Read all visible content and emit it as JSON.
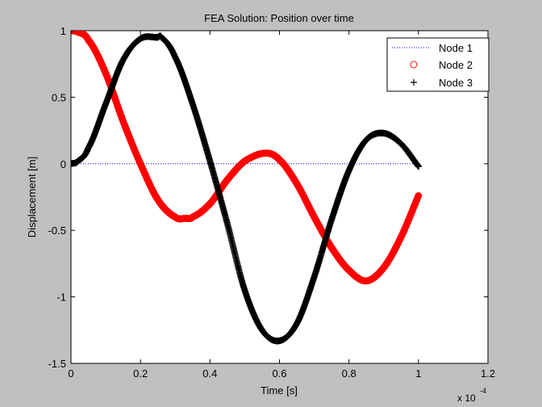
{
  "chart_data": {
    "type": "scatter",
    "title": "FEA Solution: Position over time",
    "xlabel": "Time [s]",
    "ylabel": "Displacement [m]",
    "xlim": [
      0,
      1.2
    ],
    "ylim": [
      -1.5,
      1
    ],
    "x_scale_base": "x 10",
    "x_scale_exponent": "-4",
    "x_ticks": [
      "0",
      "0.2",
      "0.4",
      "0.6",
      "0.8",
      "1",
      "1.2"
    ],
    "y_ticks": [
      "-1.5",
      "-1",
      "-0.5",
      "0",
      "0.5",
      "1"
    ],
    "x_tick_values": [
      0,
      0.2,
      0.4,
      0.6,
      0.8,
      1,
      1.2
    ],
    "y_tick_values": [
      -1.5,
      -1,
      -0.5,
      0,
      0.5,
      1
    ],
    "grid": false,
    "legend_position": "top-right",
    "series": [
      {
        "name": "Node 1",
        "style": "dotted-line",
        "color": "#0000ff",
        "x": [
          0,
          0.1,
          0.2,
          0.3,
          0.4,
          0.5,
          0.6,
          0.7,
          0.8,
          0.9,
          1.0
        ],
        "y": [
          0,
          0,
          0,
          0,
          0,
          0,
          0,
          0,
          0,
          0,
          0
        ]
      },
      {
        "name": "Node 2",
        "style": "circle-markers",
        "color": "#ff0000",
        "x": [
          0,
          0.02,
          0.05,
          0.1,
          0.15,
          0.2,
          0.25,
          0.3,
          0.33,
          0.35,
          0.4,
          0.45,
          0.5,
          0.56,
          0.6,
          0.65,
          0.7,
          0.75,
          0.8,
          0.85,
          0.9,
          0.95,
          1.0
        ],
        "y": [
          1.0,
          0.99,
          0.93,
          0.68,
          0.32,
          0.0,
          -0.27,
          -0.4,
          -0.41,
          -0.4,
          -0.3,
          -0.12,
          0.02,
          0.08,
          0.03,
          -0.15,
          -0.4,
          -0.63,
          -0.8,
          -0.88,
          -0.78,
          -0.55,
          -0.24
        ]
      },
      {
        "name": "Node 3",
        "style": "plus-markers",
        "color": "#000000",
        "x": [
          0,
          0.02,
          0.05,
          0.1,
          0.15,
          0.2,
          0.25,
          0.26,
          0.3,
          0.35,
          0.4,
          0.45,
          0.5,
          0.55,
          0.6,
          0.65,
          0.7,
          0.75,
          0.8,
          0.85,
          0.9,
          0.95,
          1.0
        ],
        "y": [
          0,
          0.02,
          0.12,
          0.45,
          0.78,
          0.94,
          0.95,
          0.95,
          0.8,
          0.45,
          0.02,
          -0.45,
          -0.95,
          -1.25,
          -1.33,
          -1.2,
          -0.85,
          -0.42,
          -0.05,
          0.18,
          0.23,
          0.15,
          -0.02
        ]
      }
    ]
  }
}
